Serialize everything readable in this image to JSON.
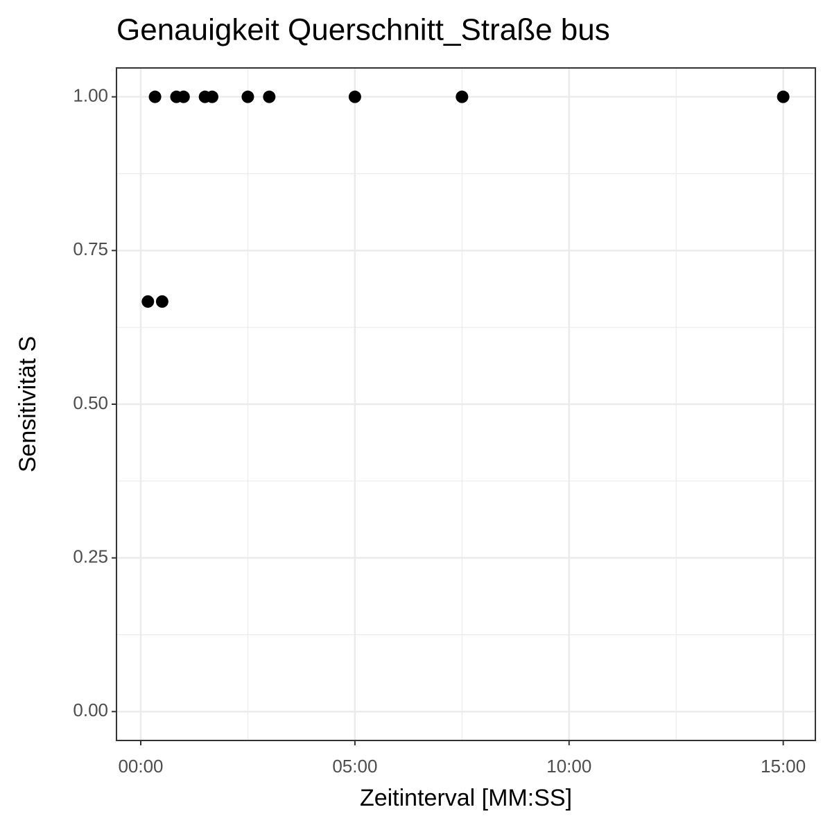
{
  "chart_data": {
    "type": "scatter",
    "title": "Genauigkeit Querschnitt_Straße bus",
    "x_label": "Zeitinterval [MM:SS]",
    "y_label": "Sensitivität S",
    "x": [
      10,
      20,
      30,
      50,
      60,
      90,
      100,
      150,
      180,
      300,
      450,
      900
    ],
    "values": [
      0.667,
      1,
      0.667,
      1,
      1,
      1,
      1,
      1,
      1,
      1,
      1,
      1
    ],
    "color": "#000000",
    "xlim": [
      -34,
      945
    ],
    "ylim": [
      -0.047,
      1.047
    ],
    "xticks": [
      {
        "value": 0,
        "label": "00:00"
      },
      {
        "value": 300,
        "label": "05:00"
      },
      {
        "value": 600,
        "label": "10:00"
      },
      {
        "value": 900,
        "label": "15:00"
      }
    ],
    "yticks": [
      {
        "value": 0,
        "label": "0.00"
      },
      {
        "value": 0.25,
        "label": "0.25"
      },
      {
        "value": 0.5,
        "label": "0.50"
      },
      {
        "value": 0.75,
        "label": "0.75"
      },
      {
        "value": 1,
        "label": "1.00"
      }
    ],
    "x_minor_ticks": [
      150,
      450,
      750
    ],
    "y_minor_ticks": [
      0.125,
      0.375,
      0.625,
      0.875
    ],
    "grid": true
  }
}
